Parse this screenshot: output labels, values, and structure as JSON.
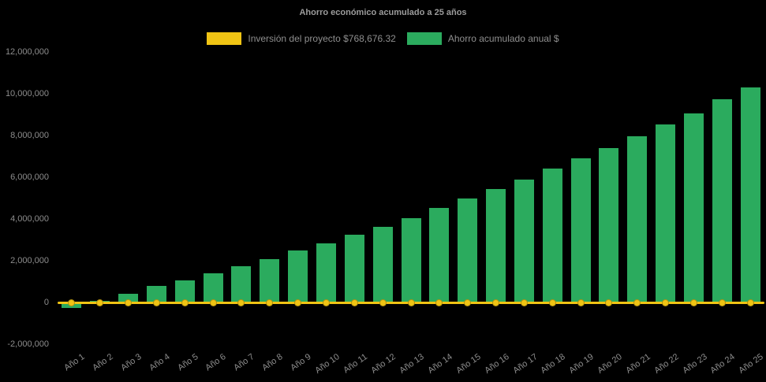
{
  "title": "Ahorro económico acumulado a 25 años",
  "colors": {
    "background": "#000000",
    "investment_yellow": "#f0c414",
    "savings_green": "#2bab5e",
    "text_gray": "#8d8d8d",
    "title_gray": "#9c9c9c"
  },
  "legend": {
    "items": [
      {
        "id": "investment",
        "label": "Inversión del proyecto $768,676.32",
        "color": "#f0c414"
      },
      {
        "id": "savings",
        "label": "Ahorro acumulado anual $",
        "color": "#2bab5e"
      }
    ]
  },
  "chart_data": {
    "type": "bar",
    "title": "Ahorro económico acumulado a 25 años",
    "categories": [
      "Año 1",
      "Año 2",
      "Año 3",
      "Año 4",
      "Año 5",
      "Año 6",
      "Año 7",
      "Año 8",
      "Año 9",
      "Año 10",
      "Año 11",
      "Año 12",
      "Año 13",
      "Año 14",
      "Año 15",
      "Año 16",
      "Año 17",
      "Año 18",
      "Año 19",
      "Año 20",
      "Año 21",
      "Año 22",
      "Año 23",
      "Año 24",
      "Año 25"
    ],
    "series": [
      {
        "name": "Ahorro acumulado anual $",
        "type": "bar",
        "color": "#2bab5e",
        "values": [
          -250000,
          60000,
          420000,
          780000,
          1060000,
          1400000,
          1740000,
          2080000,
          2490000,
          2830000,
          3250000,
          3620000,
          4040000,
          4530000,
          4980000,
          5450000,
          5890000,
          6420000,
          6910000,
          7400000,
          7960000,
          8530000,
          9060000,
          9740000,
          10300000
        ]
      },
      {
        "name": "Inversión del proyecto $768,676.32",
        "type": "line",
        "color": "#f0c414",
        "marker": "circle",
        "values": [
          0,
          0,
          0,
          0,
          0,
          0,
          0,
          0,
          0,
          0,
          0,
          0,
          0,
          0,
          0,
          0,
          0,
          0,
          0,
          0,
          0,
          0,
          0,
          0,
          0
        ]
      }
    ],
    "investment_amount_label": "$768,676.32",
    "xlabel": "",
    "ylabel": "",
    "ylim": [
      -2000000,
      12000000
    ],
    "y_ticks": [
      {
        "label": "12,000,000",
        "value": 12000000
      },
      {
        "label": "10,000,000",
        "value": 10000000
      },
      {
        "label": "8,000,000",
        "value": 8000000
      },
      {
        "label": "6,000,000",
        "value": 6000000
      },
      {
        "label": "4,000,000",
        "value": 4000000
      },
      {
        "label": "2,000,000",
        "value": 2000000
      },
      {
        "label": "0",
        "value": 0
      },
      {
        "label": "-2,000,000",
        "value": -2000000
      }
    ],
    "grid": false,
    "legend_position": "top",
    "background": "#000000"
  }
}
